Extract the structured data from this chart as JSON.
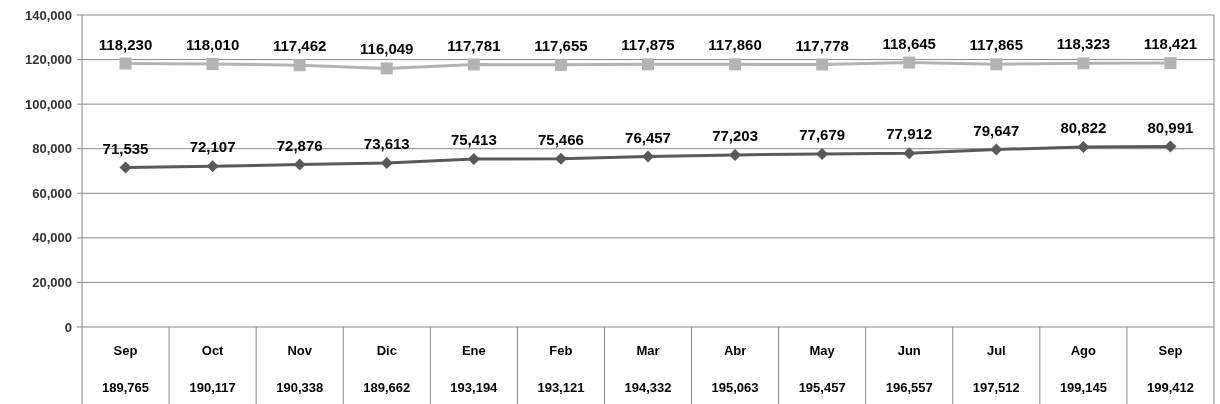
{
  "chart_data": {
    "type": "line",
    "categories": [
      "Sep",
      "Oct",
      "Nov",
      "Dic",
      "Ene",
      "Feb",
      "Mar",
      "Abr",
      "May",
      "Jun",
      "Jul",
      "Ago",
      "Sep"
    ],
    "series": [
      {
        "color": "#b3b3b3",
        "marker": "square",
        "values": [
          118230,
          118010,
          117462,
          116049,
          117781,
          117655,
          117875,
          117860,
          117778,
          118645,
          117865,
          118323,
          118421
        ],
        "value_labels": [
          "118,230",
          "118,010",
          "117,462",
          "116,049",
          "117,781",
          "117,655",
          "117,875",
          "117,860",
          "117,778",
          "118,645",
          "117,865",
          "118,323",
          "118,421"
        ]
      },
      {
        "color": "#595959",
        "marker": "diamond",
        "values": [
          71535,
          72107,
          72876,
          73613,
          75413,
          75466,
          76457,
          77203,
          77679,
          77912,
          79647,
          80822,
          80991
        ],
        "value_labels": [
          "71,535",
          "72,107",
          "72,876",
          "73,613",
          "75,413",
          "75,466",
          "76,457",
          "77,203",
          "77,679",
          "77,912",
          "79,647",
          "80,822",
          "80,991"
        ]
      }
    ],
    "ylim": [
      0,
      140000
    ],
    "yticks": [
      0,
      {
        "value": 20000,
        "label": "20,000"
      },
      {
        "value": 40000,
        "label": "40,000"
      },
      {
        "value": 60000,
        "label": "60,000"
      },
      {
        "value": 80000,
        "label": "80,000"
      },
      {
        "value": 100000,
        "label": "100,000"
      },
      {
        "value": 120000,
        "label": "120,000"
      },
      {
        "value": 140000,
        "label": "140,000"
      }
    ],
    "grid": "y",
    "totals": [
      "189,765",
      "190,117",
      "190,338",
      "189,662",
      "193,194",
      "193,121",
      "194,332",
      "195,063",
      "195,457",
      "196,557",
      "197,512",
      "199,145",
      "199,412"
    ]
  }
}
